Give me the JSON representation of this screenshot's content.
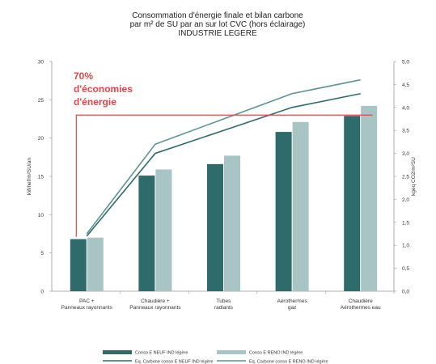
{
  "chart_data": {
    "type": "bar",
    "title": [
      "Consommation d'énergie finale et bilan carbone",
      "par m² de SU par an sur lot CVC (hors éclairage)",
      "INDUSTRIE LEGERE"
    ],
    "categories": [
      [
        "PAC +",
        "Panneaux rayonnants"
      ],
      [
        "Chaudière +",
        "Panneaux rayonnants"
      ],
      [
        "Tubes",
        "radiants"
      ],
      [
        "Aérothermes",
        "gaz"
      ],
      [
        "Chaudière",
        "Aérothermes eau"
      ]
    ],
    "ylabel": "kWhef/m²SU/an",
    "y2label": "kgeq CO2/m²SU",
    "ylim": [
      0,
      30
    ],
    "y2lim": [
      0,
      5
    ],
    "yticks": [
      "0",
      "5",
      "10",
      "15",
      "20",
      "25",
      "30"
    ],
    "y2ticks": [
      "0,0",
      "0,5",
      "1,0",
      "1,5",
      "2,0",
      "2,5",
      "3,0",
      "3,5",
      "4,0",
      "4,5",
      "5,0"
    ],
    "bar_series": [
      {
        "name": "Conso E NEUF IND légère",
        "color": "#2e6b6b",
        "values": [
          6.8,
          15.1,
          16.6,
          20.8,
          22.9
        ]
      },
      {
        "name": "Conso E RENO IND légère",
        "color": "#a9c4c4",
        "values": [
          7.0,
          15.9,
          17.7,
          22.1,
          24.2
        ]
      }
    ],
    "line_series": [
      {
        "name": "Eq. Carbone conso E NEUF IND légère",
        "color": "#2e6b6b",
        "axis": "y2",
        "values": [
          1.2,
          3.0,
          3.5,
          4.0,
          4.3
        ]
      },
      {
        "name": "Eq. Carbone conso E RENO IND légère",
        "color": "#5a9494",
        "axis": "y2",
        "values": [
          1.25,
          3.2,
          3.75,
          4.3,
          4.6
        ]
      }
    ],
    "annotation": {
      "lines": [
        "70%",
        "d'économies",
        "d'énergie"
      ],
      "color": "#e0474c",
      "bracket_value": 23.0
    },
    "grid": false,
    "legend_position": "bottom"
  }
}
